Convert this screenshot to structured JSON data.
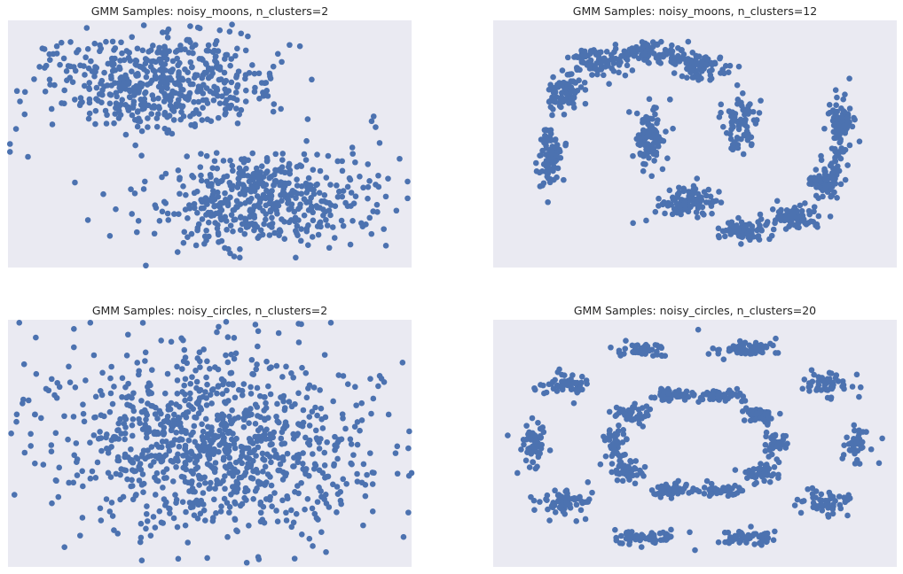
{
  "style": {
    "axes_background": "#EAEAF2",
    "marker_color": "#4C72B0",
    "title_color": "#262626",
    "figure_background": "#ffffff"
  },
  "chart_data": [
    {
      "type": "scatter",
      "title": "GMM Samples: noisy_moons, n_clusters=2",
      "xlabel": "",
      "ylabel": "",
      "axes_visible": false,
      "grid": false,
      "legend": "none",
      "xlim": [
        -1.52,
        2.52
      ],
      "ylim": [
        -1.0,
        1.5
      ],
      "series": [
        {
          "generator": "gaussian_mixture",
          "n_points": 1000,
          "seed": 11,
          "components": [
            {
              "weight": 0.5,
              "mean": [
                -0.02,
                0.88
              ],
              "std": [
                0.55,
                0.24
              ]
            },
            {
              "weight": 0.5,
              "mean": [
                1.0,
                -0.3
              ],
              "std": [
                0.55,
                0.24
              ]
            }
          ],
          "anchor_points": [
            [
              -1.5,
              0.25
            ],
            [
              -1.5,
              0.17
            ],
            [
              -1.4,
              0.68
            ],
            [
              -1.32,
              0.12
            ],
            [
              -1.1,
              1.1
            ],
            [
              -1.0,
              1.05
            ],
            [
              -0.9,
              0.92
            ],
            [
              -0.85,
              -0.14
            ],
            [
              -0.72,
              -0.52
            ],
            [
              -0.6,
              1.25
            ],
            [
              -0.5,
              -0.68
            ],
            [
              -0.16,
              1.45
            ],
            [
              -0.14,
              -0.98
            ],
            [
              -0.25,
              -0.25
            ],
            [
              0.07,
              1.38
            ],
            [
              0.4,
              1.42
            ],
            [
              0.6,
              1.4
            ],
            [
              0.66,
              1.15
            ],
            [
              0.8,
              -0.9
            ],
            [
              1.22,
              1.08
            ],
            [
              1.2,
              -0.62
            ],
            [
              1.36,
              -0.9
            ],
            [
              1.48,
              0.5
            ],
            [
              1.6,
              -0.55
            ],
            [
              1.75,
              -0.7
            ],
            [
              2.0,
              -0.08
            ],
            [
              2.12,
              0.48
            ],
            [
              2.16,
              0.42
            ],
            [
              2.2,
              0.26
            ],
            [
              2.48,
              -0.13
            ],
            [
              2.48,
              -0.3
            ],
            [
              2.4,
              0.1
            ]
          ]
        }
      ]
    },
    {
      "type": "scatter",
      "title": "GMM Samples: noisy_moons, n_clusters=12",
      "xlabel": "",
      "ylabel": "",
      "axes_visible": false,
      "grid": false,
      "legend": "none",
      "xlim": [
        -1.52,
        2.52
      ],
      "ylim": [
        -1.0,
        1.5
      ],
      "series": [
        {
          "generator": "gaussian_mixture",
          "n_points": 1000,
          "seed": 23,
          "components": [
            {
              "weight": 0.083,
              "mean": [
                -0.95,
                0.15
              ],
              "std": [
                0.06,
                0.15
              ]
            },
            {
              "weight": 0.083,
              "mean": [
                -0.8,
                0.75
              ],
              "std": [
                0.1,
                0.1
              ]
            },
            {
              "weight": 0.083,
              "mean": [
                -0.45,
                1.07
              ],
              "std": [
                0.14,
                0.07
              ]
            },
            {
              "weight": 0.083,
              "mean": [
                0.05,
                1.18
              ],
              "std": [
                0.15,
                0.05
              ]
            },
            {
              "weight": 0.083,
              "mean": [
                0.55,
                1.05
              ],
              "std": [
                0.14,
                0.07
              ]
            },
            {
              "weight": 0.083,
              "mean": [
                0.95,
                0.45
              ],
              "std": [
                0.09,
                0.14
              ]
            },
            {
              "weight": 0.083,
              "mean": [
                0.05,
                0.3
              ],
              "std": [
                0.08,
                0.15
              ]
            },
            {
              "weight": 0.083,
              "mean": [
                0.4,
                -0.35
              ],
              "std": [
                0.14,
                0.07
              ]
            },
            {
              "weight": 0.083,
              "mean": [
                0.95,
                -0.62
              ],
              "std": [
                0.14,
                0.05
              ]
            },
            {
              "weight": 0.083,
              "mean": [
                1.5,
                -0.5
              ],
              "std": [
                0.14,
                0.06
              ]
            },
            {
              "weight": 0.083,
              "mean": [
                1.82,
                -0.13
              ],
              "std": [
                0.09,
                0.11
              ]
            },
            {
              "weight": 0.083,
              "mean": [
                1.97,
                0.42
              ],
              "std": [
                0.06,
                0.15
              ]
            }
          ],
          "anchor_points": [
            [
              -0.98,
              -0.08
            ],
            [
              -1.0,
              0.05
            ],
            [
              -0.68,
              1.0
            ],
            [
              0.08,
              1.28
            ],
            [
              0.33,
              1.22
            ],
            [
              0.25,
              0.7
            ],
            [
              0.25,
              0.7
            ],
            [
              0.52,
              -0.1
            ],
            [
              0.76,
              0.65
            ],
            [
              -0.12,
              -0.55
            ],
            [
              0.1,
              0.55
            ],
            [
              1.05,
              -0.72
            ],
            [
              1.3,
              -0.55
            ],
            [
              2.0,
              0.75
            ],
            [
              1.92,
              0.72
            ],
            [
              1.6,
              -0.35
            ]
          ]
        }
      ]
    },
    {
      "type": "scatter",
      "title": "GMM Samples: noisy_circles, n_clusters=2",
      "xlabel": "",
      "ylabel": "",
      "axes_visible": false,
      "grid": false,
      "legend": "none",
      "xlim": [
        -1.25,
        1.25
      ],
      "ylim": [
        -1.25,
        1.25
      ],
      "series": [
        {
          "generator": "gaussian_mixture",
          "n_points": 1000,
          "seed": 37,
          "components": [
            {
              "weight": 0.5,
              "mean": [
                -0.05,
                0.08
              ],
              "std": [
                0.48,
                0.48
              ]
            },
            {
              "weight": 0.5,
              "mean": [
                0.1,
                -0.08
              ],
              "std": [
                0.48,
                0.48
              ]
            }
          ],
          "anchor_points": [
            [
              -1.18,
              1.22
            ],
            [
              -0.74,
              1.22
            ],
            [
              0.55,
              1.21
            ],
            [
              0.75,
              1.22
            ],
            [
              -1.23,
              0.1
            ],
            [
              -1.21,
              -0.52
            ],
            [
              -1.15,
              0.8
            ],
            [
              1.23,
              -0.7
            ],
            [
              1.23,
              -0.05
            ],
            [
              1.25,
              -0.3
            ],
            [
              1.08,
              0.62
            ],
            [
              -0.9,
              -1.05
            ],
            [
              -0.43,
              -1.0
            ],
            [
              0.3,
              -1.15
            ],
            [
              0.72,
              -1.1
            ],
            [
              0.52,
              -0.8
            ],
            [
              -0.3,
              -0.8
            ],
            [
              0.95,
              -0.83
            ],
            [
              0.12,
              -0.7
            ],
            [
              1.0,
              0.3
            ]
          ]
        }
      ]
    },
    {
      "type": "scatter",
      "title": "GMM Samples: noisy_circles, n_clusters=20",
      "xlabel": "",
      "ylabel": "",
      "axes_visible": false,
      "grid": false,
      "legend": "none",
      "xlim": [
        -1.25,
        1.25
      ],
      "ylim": [
        -1.25,
        1.25
      ],
      "series": [
        {
          "generator": "gaussian_mixture",
          "n_points": 1000,
          "seed": 41,
          "components": [
            {
              "weight": 0.05,
              "mean": [
                1.0,
                0.0
              ],
              "std": [
                0.035,
                0.1
              ]
            },
            {
              "weight": 0.05,
              "mean": [
                0.81,
                0.59
              ],
              "std": [
                0.09,
                0.07
              ]
            },
            {
              "weight": 0.05,
              "mean": [
                0.31,
                0.95
              ],
              "std": [
                0.1,
                0.035
              ]
            },
            {
              "weight": 0.05,
              "mean": [
                -0.31,
                0.95
              ],
              "std": [
                0.1,
                0.035
              ]
            },
            {
              "weight": 0.05,
              "mean": [
                -0.81,
                0.59
              ],
              "std": [
                0.09,
                0.07
              ]
            },
            {
              "weight": 0.05,
              "mean": [
                -1.0,
                0.0
              ],
              "std": [
                0.035,
                0.1
              ]
            },
            {
              "weight": 0.05,
              "mean": [
                -0.81,
                -0.59
              ],
              "std": [
                0.09,
                0.07
              ]
            },
            {
              "weight": 0.05,
              "mean": [
                -0.31,
                -0.95
              ],
              "std": [
                0.1,
                0.035
              ]
            },
            {
              "weight": 0.05,
              "mean": [
                0.31,
                -0.95
              ],
              "std": [
                0.1,
                0.035
              ]
            },
            {
              "weight": 0.05,
              "mean": [
                0.81,
                -0.59
              ],
              "std": [
                0.09,
                0.07
              ]
            },
            {
              "weight": 0.05,
              "mean": [
                0.5,
                0.0
              ],
              "std": [
                0.035,
                0.08
              ]
            },
            {
              "weight": 0.05,
              "mean": [
                0.4,
                0.29
              ],
              "std": [
                0.06,
                0.05
              ]
            },
            {
              "weight": 0.05,
              "mean": [
                0.15,
                0.48
              ],
              "std": [
                0.07,
                0.03
              ]
            },
            {
              "weight": 0.05,
              "mean": [
                -0.15,
                0.48
              ],
              "std": [
                0.07,
                0.03
              ]
            },
            {
              "weight": 0.05,
              "mean": [
                -0.4,
                0.29
              ],
              "std": [
                0.06,
                0.05
              ]
            },
            {
              "weight": 0.05,
              "mean": [
                -0.5,
                0.0
              ],
              "std": [
                0.035,
                0.08
              ]
            },
            {
              "weight": 0.05,
              "mean": [
                -0.4,
                -0.29
              ],
              "std": [
                0.06,
                0.05
              ]
            },
            {
              "weight": 0.05,
              "mean": [
                -0.15,
                -0.48
              ],
              "std": [
                0.07,
                0.03
              ]
            },
            {
              "weight": 0.05,
              "mean": [
                0.15,
                -0.48
              ],
              "std": [
                0.07,
                0.03
              ]
            },
            {
              "weight": 0.05,
              "mean": [
                0.4,
                -0.29
              ],
              "std": [
                0.06,
                0.05
              ]
            }
          ],
          "anchor_points": [
            [
              0.02,
              1.15
            ],
            [
              -1.16,
              0.08
            ],
            [
              1.16,
              0.05
            ],
            [
              -1.1,
              -0.3
            ],
            [
              1.14,
              -0.2
            ],
            [
              0.5,
              1.06
            ],
            [
              -0.85,
              0.72
            ],
            [
              0.0,
              -1.08
            ]
          ]
        }
      ]
    }
  ]
}
